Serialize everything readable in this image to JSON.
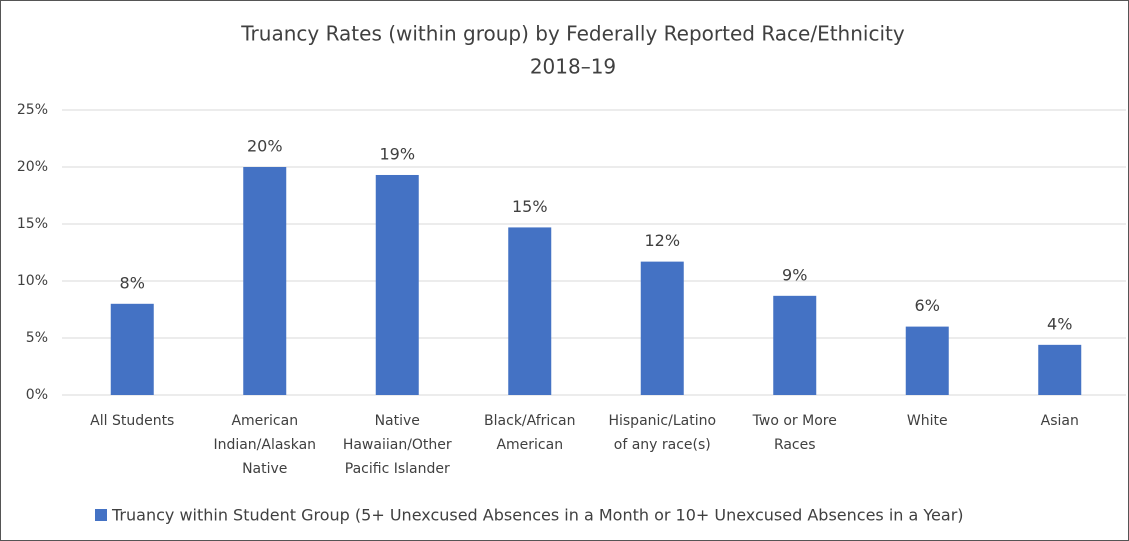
{
  "chart_data": {
    "type": "bar",
    "title": [
      "Truancy Rates (within group) by Federally Reported Race/Ethnicity",
      "2018–19"
    ],
    "categories": [
      [
        "All Students"
      ],
      [
        "American",
        "Indian/Alaskan",
        "Native"
      ],
      [
        "Native",
        "Hawaiian/Other",
        "Pacific Islander"
      ],
      [
        "Black/African",
        "American"
      ],
      [
        "Hispanic/Latino",
        "of any race(s)"
      ],
      [
        "Two or More",
        "Races"
      ],
      [
        "White"
      ],
      [
        "Asian"
      ]
    ],
    "series": [
      {
        "name": "Truancy within Student Group (5+ Unexcused Absences in a Month or 10+ Unexcused Absences in a Year)",
        "color": "#4472c4",
        "values": [
          8.0,
          20.0,
          19.3,
          14.7,
          11.7,
          8.7,
          6.0,
          4.4
        ],
        "value_labels": [
          "8%",
          "20%",
          "19%",
          "15%",
          "12%",
          "9%",
          "6%",
          "4%"
        ]
      }
    ],
    "ylim": [
      0,
      25
    ],
    "yticks": [
      {
        "value": 0,
        "label": "0%"
      },
      {
        "value": 5,
        "label": "5%"
      },
      {
        "value": 10,
        "label": "10%"
      },
      {
        "value": 15,
        "label": "15%"
      },
      {
        "value": 20,
        "label": "20%"
      },
      {
        "value": 25,
        "label": "25%"
      }
    ],
    "grid": true,
    "legend": "bottom"
  }
}
